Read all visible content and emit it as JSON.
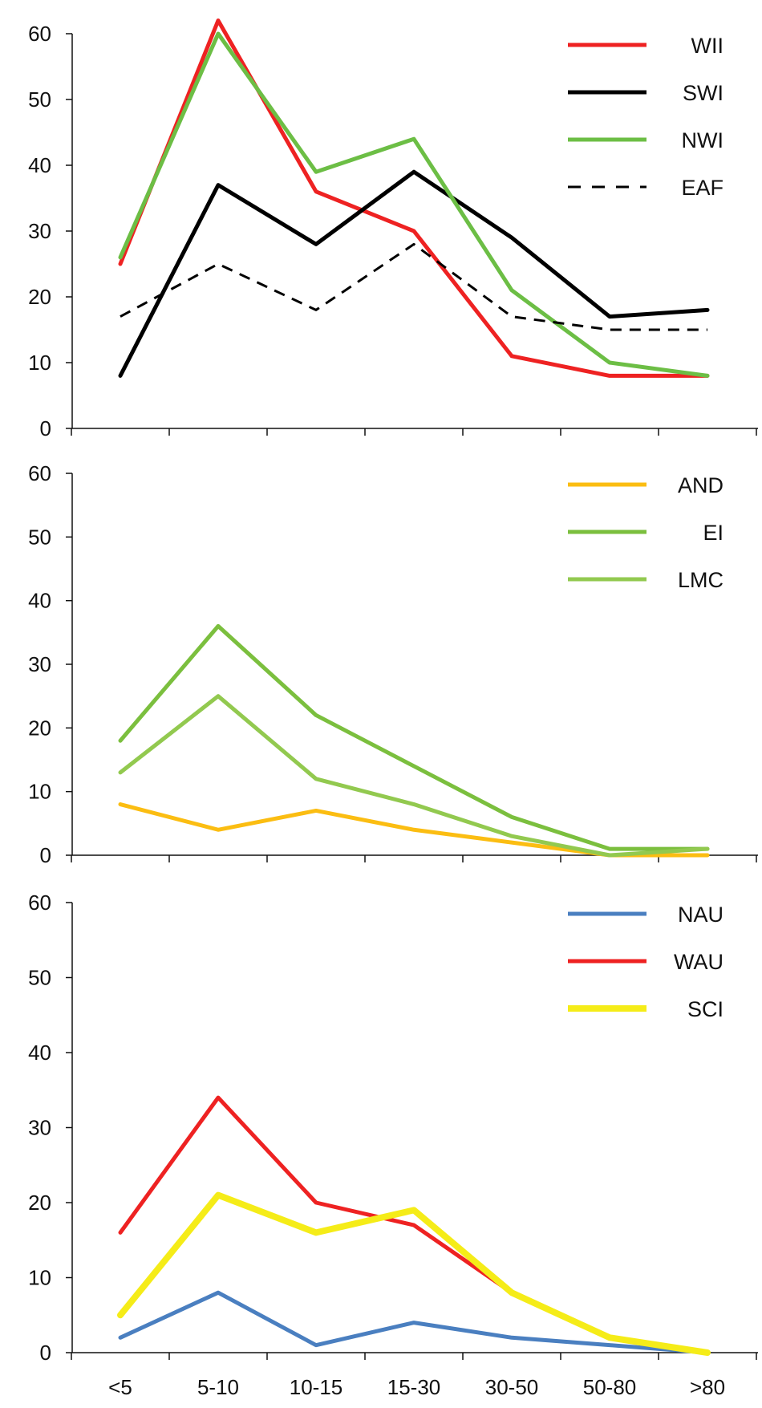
{
  "chart_data": [
    {
      "type": "line",
      "categories": [
        "<5",
        "5-10",
        "10-15",
        "15-30",
        "30-50",
        "50-80",
        ">80"
      ],
      "ylim": [
        0,
        60
      ],
      "yticks": [
        0,
        10,
        20,
        30,
        40,
        50,
        60
      ],
      "legend_position": "top-right",
      "grid": false,
      "series": [
        {
          "name": "WII",
          "color": "#ee2222",
          "width": 5,
          "dash": "",
          "values": [
            25,
            62,
            36,
            30,
            11,
            8,
            8
          ]
        },
        {
          "name": "SWI",
          "color": "#000000",
          "width": 5,
          "dash": "",
          "values": [
            8,
            37,
            28,
            39,
            29,
            17,
            18
          ]
        },
        {
          "name": "NWI",
          "color": "#6cbe45",
          "width": 5,
          "dash": "",
          "values": [
            26,
            60,
            39,
            44,
            21,
            10,
            8
          ]
        },
        {
          "name": "EAF",
          "color": "#000000",
          "width": 3,
          "dash": "14 10",
          "values": [
            17,
            25,
            18,
            28,
            17,
            15,
            15
          ]
        }
      ]
    },
    {
      "type": "line",
      "categories": [
        "<5",
        "5-10",
        "10-15",
        "15-30",
        "30-50",
        "50-80",
        ">80"
      ],
      "ylim": [
        0,
        60
      ],
      "yticks": [
        0,
        10,
        20,
        30,
        40,
        50,
        60
      ],
      "legend_position": "top-right",
      "grid": false,
      "series": [
        {
          "name": "AND",
          "color": "#fbbd12",
          "width": 5,
          "dash": "",
          "values": [
            8,
            4,
            7,
            4,
            2,
            0,
            0
          ]
        },
        {
          "name": "EI",
          "color": "#7bbf3e",
          "width": 5,
          "dash": "",
          "values": [
            18,
            36,
            22,
            14,
            6,
            1,
            1
          ]
        },
        {
          "name": "LMC",
          "color": "#92c94f",
          "width": 5,
          "dash": "",
          "values": [
            13,
            25,
            12,
            8,
            3,
            0,
            1
          ]
        }
      ]
    },
    {
      "type": "line",
      "categories": [
        "<5",
        "5-10",
        "10-15",
        "15-30",
        "30-50",
        "50-80",
        ">80"
      ],
      "ylim": [
        0,
        60
      ],
      "yticks": [
        0,
        10,
        20,
        30,
        40,
        50,
        60
      ],
      "legend_position": "top-right",
      "grid": false,
      "show_x_labels": true,
      "series": [
        {
          "name": "NAU",
          "color": "#4a7fc0",
          "width": 5,
          "dash": "",
          "values": [
            2,
            8,
            1,
            4,
            2,
            1,
            0
          ]
        },
        {
          "name": "WAU",
          "color": "#ee2222",
          "width": 5,
          "dash": "",
          "values": [
            16,
            34,
            20,
            17,
            8,
            2,
            0
          ]
        },
        {
          "name": "SCI",
          "color": "#f5ec18",
          "width": 8,
          "dash": "",
          "values": [
            5,
            21,
            16,
            19,
            8,
            2,
            0
          ]
        }
      ]
    }
  ]
}
